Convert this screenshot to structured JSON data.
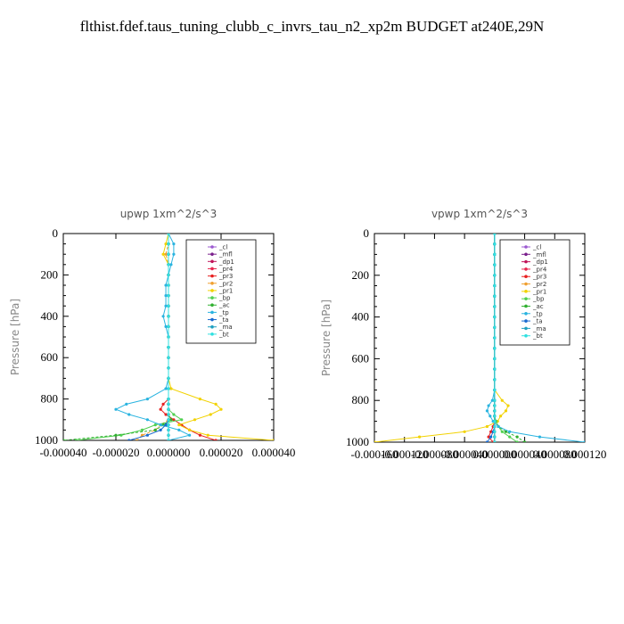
{
  "title": "flthist.fdef.taus_tuning_clubb_c_invrs_tau_n2_xp2m  BUDGET at240E,29N",
  "chart_data": [
    {
      "type": "line",
      "title": "upwp   1xm^2/s^3",
      "ylabel": "Pressure [hPa]",
      "xlabel": "",
      "xlim": [
        -4e-05,
        4e-05
      ],
      "ylim": [
        1000,
        0
      ],
      "x_ticks": [
        "-0.000040",
        "-0.000020",
        "0.000000",
        "0.000020",
        "0.000040"
      ],
      "y_ticks": [
        "0",
        "200",
        "400",
        "600",
        "800",
        "1000"
      ],
      "legend_position": "top-right inside",
      "y": [
        50,
        100,
        150,
        200,
        250,
        300,
        350,
        400,
        450,
        500,
        550,
        600,
        650,
        700,
        750,
        800,
        825,
        850,
        875,
        900,
        925,
        950,
        975,
        1000
      ],
      "series": [
        {
          "name": "_cl",
          "color": "#9b59d0",
          "values": [
            0,
            0,
            0,
            0,
            0,
            0,
            0,
            0,
            0,
            0,
            0,
            0,
            0,
            0,
            0,
            0,
            0,
            0,
            0,
            0,
            0,
            0,
            0,
            0
          ]
        },
        {
          "name": "_mfl",
          "color": "#7a1f8c",
          "values": [
            0,
            0,
            0,
            0,
            0,
            0,
            0,
            0,
            0,
            0,
            0,
            0,
            0,
            0,
            0,
            0,
            0,
            0,
            0,
            0,
            0,
            0,
            0,
            0
          ]
        },
        {
          "name": "_dp1",
          "color": "#c0145a",
          "values": [
            0,
            0,
            0,
            0,
            0,
            0,
            0,
            0,
            0,
            0,
            0,
            0,
            0,
            0,
            0,
            0,
            0,
            0,
            0,
            0,
            0,
            0,
            0,
            0
          ]
        },
        {
          "name": "_pr4",
          "color": "#e8264e",
          "values": [
            0,
            0,
            0,
            0,
            0,
            0,
            0,
            0,
            0,
            0,
            0,
            0,
            0,
            0,
            0,
            0,
            0,
            0,
            0,
            0,
            0,
            0,
            0,
            0
          ]
        },
        {
          "name": "_pr3",
          "color": "#e82020",
          "values": [
            0,
            0,
            0,
            0,
            0,
            0,
            0,
            0,
            0,
            0,
            0,
            0,
            0,
            0,
            0,
            0,
            -2e-06,
            -3e-06,
            -1e-06,
            2e-06,
            5e-06,
            8e-06,
            1.2e-05,
            1.8e-05
          ]
        },
        {
          "name": "_pr2",
          "color": "#f0a030",
          "values": [
            0,
            -1e-06,
            0,
            0,
            0,
            0,
            0,
            0,
            0,
            0,
            0,
            0,
            0,
            0,
            0,
            0,
            0,
            0,
            0,
            0,
            -3e-06,
            -5e-06,
            -1e-05,
            -1.2e-05
          ]
        },
        {
          "name": "_pr1",
          "color": "#f2d200",
          "values": [
            -1e-06,
            -2e-06,
            0,
            0,
            0,
            0,
            0,
            0,
            0,
            0,
            0,
            0,
            0,
            0,
            1e-06,
            1.2e-05,
            1.8e-05,
            2e-05,
            1.6e-05,
            1e-05,
            4e-06,
            8e-06,
            1.5e-05,
            4e-05
          ]
        },
        {
          "name": "_bp",
          "color": "#50d050",
          "values": [
            0,
            0,
            0,
            0,
            0,
            0,
            0,
            0,
            0,
            0,
            0,
            0,
            0,
            0,
            0,
            0,
            0,
            0,
            2e-06,
            5e-06,
            -5e-06,
            -1e-05,
            -1.8e-05,
            -3.5e-05
          ]
        },
        {
          "name": "_ac",
          "color": "#30b030",
          "values": [
            0,
            0,
            0,
            0,
            0,
            0,
            0,
            0,
            0,
            0,
            0,
            0,
            0,
            0,
            0,
            0,
            0,
            0,
            0,
            1e-06,
            -2e-06,
            -5e-06,
            -2e-05,
            -4e-05
          ]
        },
        {
          "name": "_tp",
          "color": "#2ab4e0",
          "values": [
            2e-06,
            2e-06,
            1e-06,
            0,
            -1e-06,
            -1e-06,
            -1e-06,
            -2e-06,
            -1e-06,
            0,
            0,
            0,
            0,
            0,
            -1e-06,
            -8e-06,
            -1.6e-05,
            -2e-05,
            -1.5e-05,
            -8e-06,
            -3e-06,
            4e-06,
            8e-06,
            0
          ]
        },
        {
          "name": "_ta",
          "color": "#1a6ad0",
          "values": [
            0,
            0,
            0,
            0,
            0,
            0,
            0,
            0,
            0,
            0,
            0,
            0,
            0,
            0,
            0,
            0,
            0,
            0,
            0,
            0,
            -1e-06,
            -3e-06,
            -8e-06,
            -1.5e-05
          ]
        },
        {
          "name": "_ma",
          "color": "#20a0c0",
          "values": [
            0,
            0,
            0,
            0,
            0,
            0,
            0,
            0,
            0,
            0,
            0,
            0,
            0,
            0,
            0,
            0,
            0,
            0,
            0,
            0,
            0,
            0,
            0,
            0
          ]
        },
        {
          "name": "_bt",
          "color": "#30e0e0",
          "values": [
            0,
            0,
            0,
            0,
            0,
            0,
            0,
            0,
            0,
            0,
            0,
            0,
            0,
            0,
            0,
            0,
            0,
            0,
            0,
            0,
            0,
            0,
            0,
            0
          ]
        }
      ]
    },
    {
      "type": "line",
      "title": "vpwp   1xm^2/s^3",
      "ylabel": "Pressure [hPa]",
      "xlabel": "",
      "xlim": [
        -0.00016,
        0.00012
      ],
      "ylim": [
        1000,
        0
      ],
      "x_ticks": [
        "-0.000160",
        "-0.000120",
        "-0.000080",
        "-0.000040",
        "0.000000",
        "0.000040",
        "0.000080",
        "0.000120"
      ],
      "y_ticks": [
        "0",
        "200",
        "400",
        "600",
        "800",
        "1000"
      ],
      "legend_position": "top-right inside",
      "y": [
        50,
        100,
        150,
        200,
        250,
        300,
        350,
        400,
        450,
        500,
        550,
        600,
        650,
        700,
        750,
        800,
        825,
        850,
        875,
        900,
        925,
        950,
        975,
        1000
      ],
      "series": [
        {
          "name": "_cl",
          "color": "#9b59d0",
          "values": [
            0,
            0,
            0,
            0,
            0,
            0,
            0,
            0,
            0,
            0,
            0,
            0,
            0,
            0,
            0,
            0,
            0,
            0,
            0,
            0,
            0,
            0,
            0,
            0
          ]
        },
        {
          "name": "_mfl",
          "color": "#7a1f8c",
          "values": [
            0,
            0,
            0,
            0,
            0,
            0,
            0,
            0,
            0,
            0,
            0,
            0,
            0,
            0,
            0,
            0,
            0,
            0,
            0,
            0,
            0,
            0,
            0,
            0
          ]
        },
        {
          "name": "_dp1",
          "color": "#c0145a",
          "values": [
            0,
            0,
            0,
            0,
            0,
            0,
            0,
            0,
            0,
            0,
            0,
            0,
            0,
            0,
            0,
            0,
            0,
            0,
            0,
            0,
            0,
            0,
            0,
            0
          ]
        },
        {
          "name": "_pr4",
          "color": "#e8264e",
          "values": [
            0,
            0,
            0,
            0,
            0,
            0,
            0,
            0,
            0,
            0,
            0,
            0,
            0,
            0,
            0,
            0,
            0,
            0,
            0,
            0,
            0,
            0,
            0,
            0
          ]
        },
        {
          "name": "_pr3",
          "color": "#e82020",
          "values": [
            0,
            0,
            0,
            0,
            0,
            0,
            0,
            0,
            0,
            0,
            0,
            0,
            0,
            0,
            0,
            0,
            0,
            0,
            0,
            0,
            -2e-06,
            -5e-06,
            -8e-06,
            -2e-06
          ]
        },
        {
          "name": "_pr2",
          "color": "#f0a030",
          "values": [
            0,
            0,
            0,
            0,
            0,
            0,
            0,
            0,
            0,
            0,
            0,
            0,
            0,
            0,
            0,
            0,
            0,
            0,
            0,
            0,
            0,
            0,
            0,
            0
          ]
        },
        {
          "name": "_pr1",
          "color": "#f2d200",
          "values": [
            0,
            0,
            0,
            0,
            0,
            0,
            0,
            0,
            0,
            0,
            0,
            0,
            0,
            0,
            0,
            1e-05,
            1.8e-05,
            1.5e-05,
            8e-06,
            4e-06,
            -1e-05,
            -4e-05,
            -0.0001,
            -0.00016
          ]
        },
        {
          "name": "_bp",
          "color": "#50d050",
          "values": [
            0,
            0,
            0,
            0,
            0,
            0,
            0,
            0,
            0,
            0,
            0,
            0,
            0,
            0,
            0,
            0,
            0,
            0,
            0,
            2e-06,
            5e-06,
            1e-05,
            2e-05,
            3e-05
          ]
        },
        {
          "name": "_ac",
          "color": "#30b030",
          "values": [
            0,
            0,
            0,
            0,
            0,
            0,
            0,
            0,
            0,
            0,
            0,
            0,
            0,
            0,
            0,
            0,
            0,
            0,
            0,
            0,
            5e-06,
            1.5e-05,
            3e-05,
            4e-05
          ]
        },
        {
          "name": "_tp",
          "color": "#2ab4e0",
          "values": [
            0,
            0,
            0,
            0,
            0,
            0,
            0,
            0,
            0,
            0,
            0,
            0,
            0,
            0,
            0,
            -3e-06,
            -8e-06,
            -1e-05,
            -6e-06,
            -2e-06,
            5e-06,
            2e-05,
            6e-05,
            0.00012
          ]
        },
        {
          "name": "_ta",
          "color": "#1a6ad0",
          "values": [
            0,
            0,
            0,
            0,
            0,
            0,
            0,
            0,
            0,
            0,
            0,
            0,
            0,
            0,
            0,
            0,
            0,
            0,
            0,
            0,
            0,
            -2e-06,
            -5e-06,
            -1e-05
          ]
        },
        {
          "name": "_ma",
          "color": "#20a0c0",
          "values": [
            0,
            0,
            0,
            0,
            0,
            0,
            0,
            0,
            0,
            0,
            0,
            0,
            0,
            0,
            0,
            0,
            0,
            0,
            0,
            0,
            0,
            0,
            0,
            0
          ]
        },
        {
          "name": "_bt",
          "color": "#30e0e0",
          "values": [
            0,
            0,
            0,
            0,
            0,
            0,
            0,
            0,
            0,
            0,
            0,
            0,
            0,
            0,
            0,
            0,
            0,
            0,
            0,
            0,
            0,
            0,
            0,
            0
          ]
        }
      ]
    }
  ]
}
